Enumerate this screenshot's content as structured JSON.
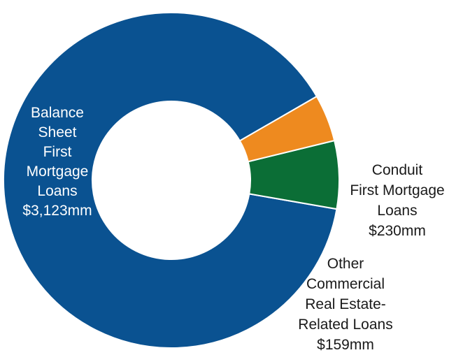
{
  "chart_data": {
    "type": "pie",
    "variant": "donut",
    "legend": "none",
    "slices": [
      {
        "label_lines": [
          "Balance",
          "Sheet",
          "First",
          "Mortgage",
          "Loans",
          "$3,123mm"
        ],
        "value": 3123,
        "unit": "mm",
        "color": "#0a5291",
        "label_color": "#ffffff"
      },
      {
        "label_lines": [
          "Conduit",
          "First Mortgage",
          "Loans",
          "$230mm"
        ],
        "value": 230,
        "unit": "mm",
        "color": "#0b6e36",
        "label_color": "#1a1a1a"
      },
      {
        "label_lines": [
          "Other",
          "Commercial",
          "Real Estate-",
          "Related Loans",
          "$159mm"
        ],
        "value": 159,
        "unit": "mm",
        "color": "#ee8a1f",
        "label_color": "#1a1a1a"
      }
    ]
  }
}
